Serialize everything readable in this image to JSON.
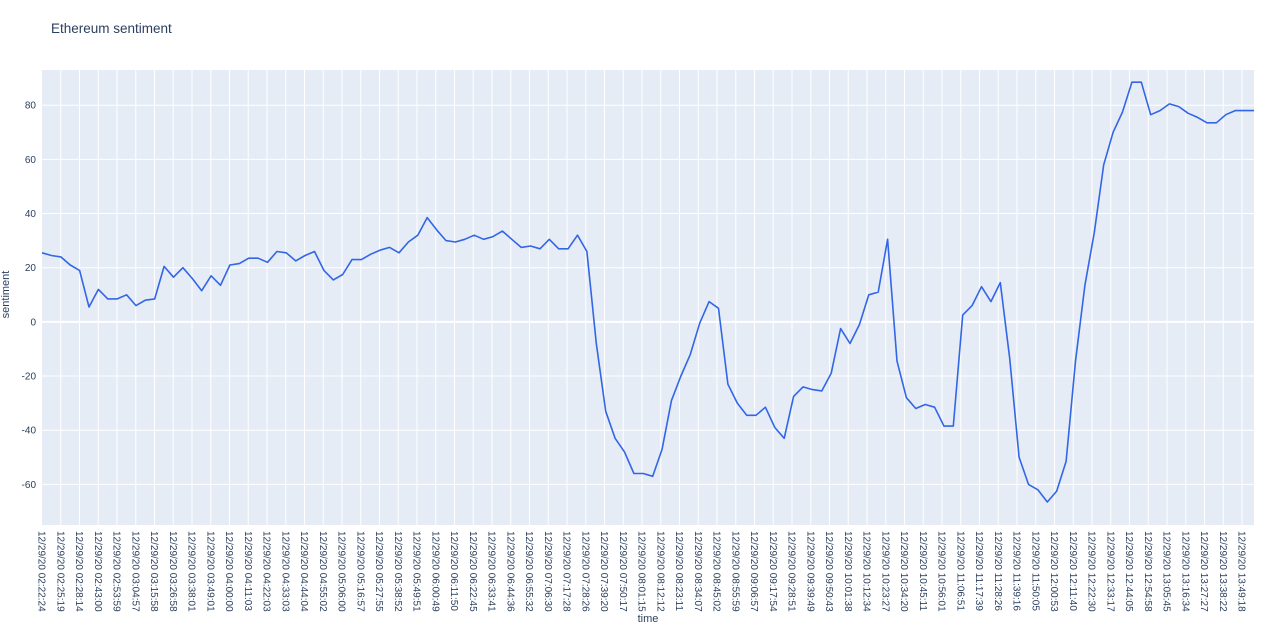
{
  "chart_data": {
    "type": "line",
    "title": "Ethereum sentiment",
    "xlabel": "time",
    "ylabel": "sentiment",
    "ylim": [
      -75,
      93
    ],
    "yticks": [
      -60,
      -40,
      -20,
      0,
      20,
      40,
      60,
      80
    ],
    "grid": true,
    "legend": "none",
    "colors": {
      "line": "#3366e6",
      "plot_bg": "#e5ecf6",
      "grid": "#ffffff"
    },
    "x_tick_labels": [
      "12/29/20 02:22:24",
      "12/29/20 02:25:19",
      "12/29/20 02:28:14",
      "12/29/20 02:43:00",
      "12/29/20 02:53:59",
      "12/29/20 03:04:57",
      "12/29/20 03:15:58",
      "12/29/20 03:26:58",
      "12/29/20 03:38:01",
      "12/29/20 03:49:01",
      "12/29/20 04:00:00",
      "12/29/20 04:11:03",
      "12/29/20 04:22:03",
      "12/29/20 04:33:03",
      "12/29/20 04:44:04",
      "12/29/20 04:55:02",
      "12/29/20 05:06:00",
      "12/29/20 05:16:57",
      "12/29/20 05:27:55",
      "12/29/20 05:38:52",
      "12/29/20 05:49:51",
      "12/29/20 06:00:49",
      "12/29/20 06:11:50",
      "12/29/20 06:22:45",
      "12/29/20 06:33:41",
      "12/29/20 06:44:36",
      "12/29/20 06:55:32",
      "12/29/20 07:06:30",
      "12/29/20 07:17:28",
      "12/29/20 07:28:26",
      "12/29/20 07:39:20",
      "12/29/20 07:50:17",
      "12/29/20 08:01:15",
      "12/29/20 08:12:12",
      "12/29/20 08:23:11",
      "12/29/20 08:34:07",
      "12/29/20 08:45:02",
      "12/29/20 08:55:59",
      "12/29/20 09:06:57",
      "12/29/20 09:17:54",
      "12/29/20 09:28:51",
      "12/29/20 09:39:49",
      "12/29/20 09:50:43",
      "12/29/20 10:01:38",
      "12/29/20 10:12:34",
      "12/29/20 10:23:27",
      "12/29/20 10:34:20",
      "12/29/20 10:45:11",
      "12/29/20 10:56:01",
      "12/29/20 11:06:51",
      "12/29/20 11:17:39",
      "12/29/20 11:28:26",
      "12/29/20 11:39:16",
      "12/29/20 11:50:05",
      "12/29/20 12:00:53",
      "12/29/20 12:11:40",
      "12/29/20 12:22:30",
      "12/29/20 12:33:17",
      "12/29/20 12:44:05",
      "12/29/20 12:54:58",
      "12/29/20 13:05:45",
      "12/29/20 13:16:34",
      "12/29/20 13:27:27",
      "12/29/20 13:38:22",
      "12/29/20 13:49:18"
    ],
    "values": [
      25.5,
      24.5,
      24,
      21,
      19,
      5.5,
      12,
      8.5,
      8.5,
      10,
      6,
      8,
      8.5,
      20.5,
      16.5,
      20,
      16,
      11.5,
      17,
      13.5,
      21,
      21.5,
      23.5,
      23.5,
      22,
      26,
      25.5,
      22.5,
      24.5,
      26,
      19,
      15.5,
      17.5,
      23,
      23,
      25,
      26.5,
      27.5,
      25.5,
      29.5,
      32,
      38.5,
      34,
      30,
      29.5,
      30.5,
      32,
      30.5,
      31.5,
      33.5,
      30.5,
      27.5,
      28,
      27,
      30.5,
      27,
      27,
      32,
      26,
      -8,
      -33,
      -43,
      -48,
      -56,
      -56,
      -57,
      -47,
      -29,
      -20,
      -12,
      -0.5,
      7.5,
      5,
      -23,
      -30,
      -34.5,
      -34.5,
      -31.5,
      -39,
      -43,
      -27.5,
      -24,
      -25,
      -25.5,
      -19,
      -2.5,
      -8,
      -1,
      10,
      11,
      30.5,
      -14.5,
      -28,
      -32,
      -30.5,
      -31.5,
      -38.5,
      -38.5,
      2.5,
      6,
      13,
      7.5,
      14.5,
      -13.5,
      -50,
      -60,
      -62,
      -66.5,
      -62.5,
      -51.5,
      -14.5,
      13.5,
      33,
      58,
      70,
      77.5,
      88.5,
      88.5,
      76.5,
      78,
      80.5,
      79.5,
      77,
      75.5,
      73.5,
      73.5,
      76.5,
      78,
      78,
      78
    ]
  }
}
